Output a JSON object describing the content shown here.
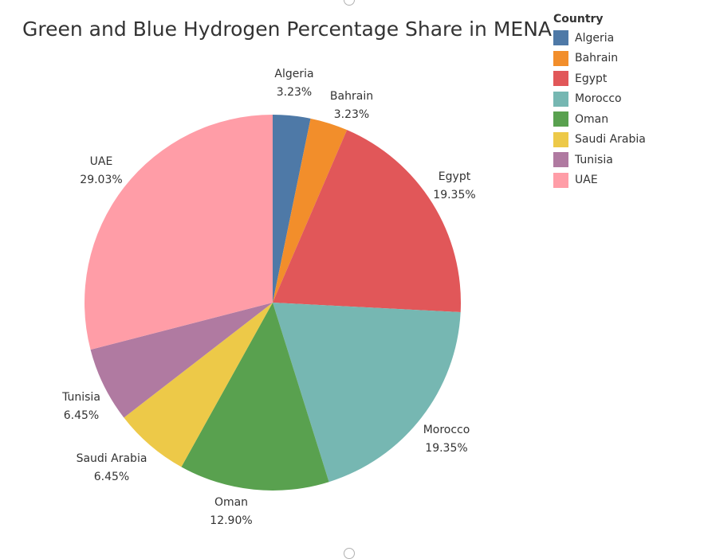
{
  "chart_data": {
    "type": "pie",
    "title": "Green and Blue Hydrogen Percentage Share in MENA",
    "legend_title": "Country",
    "legend_position": "top-right",
    "slices": [
      {
        "name": "Algeria",
        "value": 3.23,
        "label": "3.23%",
        "color": "#4e79a7"
      },
      {
        "name": "Bahrain",
        "value": 3.23,
        "label": "3.23%",
        "color": "#f28e2b"
      },
      {
        "name": "Egypt",
        "value": 19.35,
        "label": "19.35%",
        "color": "#e15759"
      },
      {
        "name": "Morocco",
        "value": 19.35,
        "label": "19.35%",
        "color": "#76b7b2"
      },
      {
        "name": "Oman",
        "value": 12.9,
        "label": "12.90%",
        "color": "#59a14f"
      },
      {
        "name": "Saudi Arabia",
        "value": 6.45,
        "label": "6.45%",
        "color": "#edc948"
      },
      {
        "name": "Tunisia",
        "value": 6.45,
        "label": "6.45%",
        "color": "#b07aa1"
      },
      {
        "name": "UAE",
        "value": 29.03,
        "label": "29.03%",
        "color": "#ff9da7"
      }
    ]
  }
}
